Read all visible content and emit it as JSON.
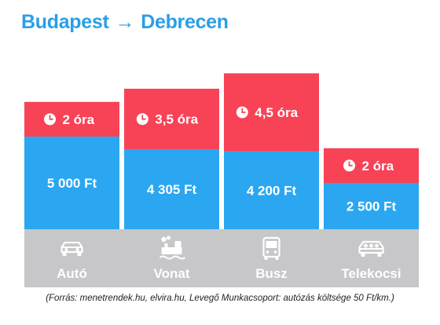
{
  "header": {
    "from": "Budapest",
    "arrow": "→",
    "to": "Debrecen"
  },
  "footnote": "(Forrás: menetrendek.hu, elvira.hu, Levegő Munkacsoport: autózás költsége 50 Ft/km.)",
  "colors": {
    "title": "#2a9fe6",
    "cost": "#2aa7f0",
    "time": "#f84256",
    "band": "#c7c6c9",
    "white": "#ffffff"
  },
  "chart_data": {
    "type": "bar",
    "stacked": true,
    "categories": [
      "Autó",
      "Vonat",
      "Busz",
      "Telekocsi"
    ],
    "icons": [
      "car-icon",
      "train-icon",
      "bus-icon",
      "carpool-icon"
    ],
    "series": [
      {
        "values": [
          5000,
          4305,
          4200,
          2500
        ],
        "labels": [
          "5 000 Ft",
          "4 305 Ft",
          "4 200 Ft",
          "2 500 Ft"
        ]
      },
      {
        "values": [
          2,
          3.5,
          4.5,
          2
        ],
        "labels": [
          "2 óra",
          "3,5 óra",
          "4,5 óra",
          "2 óra"
        ]
      }
    ]
  }
}
